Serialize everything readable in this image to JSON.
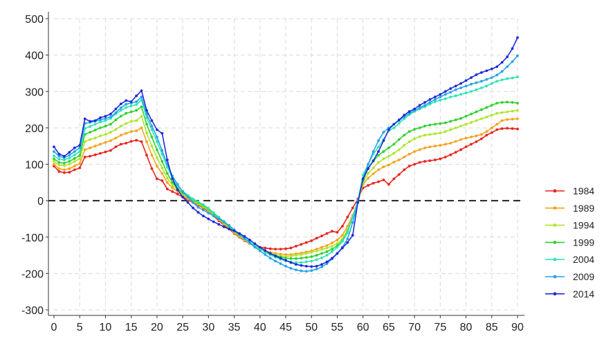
{
  "chart_data": {
    "type": "line",
    "title": "",
    "xlabel": "",
    "ylabel": "",
    "xlim": [
      0,
      90
    ],
    "ylim": [
      -300,
      500
    ],
    "xticks": [
      "0",
      "5",
      "10",
      "15",
      "20",
      "25",
      "30",
      "35",
      "40",
      "45",
      "50",
      "55",
      "60",
      "65",
      "70",
      "75",
      "80",
      "85",
      "90"
    ],
    "yticks": [
      "500",
      "400",
      "300",
      "200",
      "100",
      "0",
      "-100",
      "-200",
      "-300"
    ],
    "grid": true,
    "zero_line": "dashed",
    "legend_placement": "right",
    "x": [
      0,
      1,
      2,
      3,
      4,
      5,
      6,
      7,
      8,
      9,
      10,
      11,
      12,
      13,
      14,
      15,
      16,
      17,
      18,
      19,
      20,
      21,
      22,
      23,
      24,
      25,
      26,
      27,
      28,
      29,
      30,
      31,
      32,
      33,
      34,
      35,
      36,
      37,
      38,
      39,
      40,
      41,
      42,
      43,
      44,
      45,
      46,
      47,
      48,
      49,
      50,
      51,
      52,
      53,
      54,
      55,
      56,
      57,
      58,
      59,
      60,
      61,
      62,
      63,
      64,
      65,
      66,
      67,
      68,
      69,
      70,
      71,
      72,
      73,
      74,
      75,
      76,
      77,
      78,
      79,
      80,
      81,
      82,
      83,
      84,
      85,
      86,
      87,
      88,
      89,
      90
    ],
    "series": [
      {
        "name": "1984",
        "color": "#e8231d",
        "values": [
          95,
          80,
          77,
          78,
          85,
          90,
          120,
          122,
          126,
          130,
          134,
          138,
          148,
          155,
          158,
          163,
          166,
          162,
          125,
          88,
          60,
          55,
          32,
          25,
          18,
          10,
          2,
          -5,
          -12,
          -20,
          -30,
          -42,
          -55,
          -67,
          -78,
          -90,
          -100,
          -110,
          -118,
          -124,
          -128,
          -130,
          -132,
          -133,
          -133,
          -132,
          -130,
          -125,
          -120,
          -115,
          -110,
          -103,
          -97,
          -90,
          -84,
          -87,
          -70,
          -45,
          -20,
          5,
          35,
          42,
          48,
          52,
          57,
          45,
          60,
          72,
          85,
          95,
          100,
          105,
          108,
          110,
          112,
          115,
          120,
          126,
          133,
          140,
          148,
          155,
          162,
          170,
          180,
          187,
          195,
          198,
          199,
          198,
          197
        ]
      },
      {
        "name": "1989",
        "color": "#f5a31c",
        "values": [
          100,
          88,
          85,
          88,
          95,
          102,
          140,
          145,
          150,
          155,
          160,
          165,
          172,
          180,
          185,
          190,
          192,
          200,
          162,
          125,
          95,
          75,
          50,
          35,
          25,
          15,
          5,
          -3,
          -10,
          -18,
          -28,
          -40,
          -52,
          -64,
          -75,
          -88,
          -98,
          -108,
          -118,
          -126,
          -132,
          -138,
          -142,
          -145,
          -147,
          -148,
          -148,
          -146,
          -144,
          -141,
          -138,
          -133,
          -128,
          -123,
          -116,
          -108,
          -95,
          -70,
          -40,
          -5,
          45,
          62,
          74,
          85,
          93,
          98,
          106,
          112,
          120,
          128,
          135,
          140,
          145,
          148,
          150,
          152,
          155,
          158,
          163,
          168,
          172,
          175,
          178,
          182,
          190,
          200,
          210,
          220,
          223,
          224,
          225
        ]
      },
      {
        "name": "1994",
        "color": "#aee52d",
        "values": [
          108,
          98,
          96,
          100,
          108,
          115,
          162,
          168,
          172,
          178,
          182,
          188,
          196,
          205,
          212,
          218,
          220,
          232,
          186,
          150,
          118,
          90,
          62,
          42,
          30,
          18,
          8,
          0,
          -8,
          -16,
          -26,
          -38,
          -50,
          -62,
          -74,
          -86,
          -97,
          -107,
          -117,
          -126,
          -134,
          -140,
          -145,
          -149,
          -152,
          -153,
          -152,
          -150,
          -148,
          -145,
          -142,
          -138,
          -134,
          -130,
          -125,
          -118,
          -105,
          -80,
          -45,
          -5,
          50,
          75,
          90,
          105,
          115,
          122,
          130,
          140,
          152,
          162,
          170,
          176,
          180,
          182,
          184,
          186,
          190,
          195,
          200,
          205,
          210,
          215,
          220,
          225,
          230,
          235,
          240,
          242,
          244,
          246,
          248
        ]
      },
      {
        "name": "1999",
        "color": "#2ed12c",
        "values": [
          115,
          105,
          103,
          108,
          116,
          124,
          182,
          188,
          194,
          200,
          205,
          210,
          222,
          232,
          240,
          244,
          248,
          258,
          210,
          175,
          140,
          108,
          75,
          50,
          33,
          22,
          12,
          3,
          -5,
          -13,
          -23,
          -35,
          -47,
          -59,
          -71,
          -83,
          -94,
          -104,
          -114,
          -123,
          -132,
          -140,
          -146,
          -151,
          -155,
          -158,
          -159,
          -159,
          -158,
          -156,
          -154,
          -150,
          -145,
          -140,
          -133,
          -124,
          -110,
          -85,
          -45,
          0,
          55,
          90,
          108,
          125,
          135,
          145,
          155,
          168,
          180,
          190,
          196,
          200,
          205,
          208,
          210,
          212,
          214,
          218,
          222,
          226,
          232,
          238,
          244,
          250,
          256,
          262,
          268,
          270,
          271,
          270,
          268
        ]
      },
      {
        "name": "2004",
        "color": "#2ee6b5",
        "values": [
          123,
          114,
          112,
          117,
          126,
          135,
          198,
          204,
          210,
          216,
          220,
          226,
          238,
          248,
          256,
          260,
          264,
          276,
          228,
          195,
          162,
          128,
          92,
          62,
          40,
          26,
          15,
          5,
          -3,
          -11,
          -21,
          -33,
          -45,
          -57,
          -69,
          -81,
          -92,
          -103,
          -113,
          -123,
          -132,
          -141,
          -149,
          -155,
          -161,
          -165,
          -168,
          -170,
          -170,
          -168,
          -166,
          -162,
          -157,
          -150,
          -140,
          -128,
          -112,
          -88,
          -45,
          0,
          70,
          100,
          128,
          148,
          168,
          192,
          200,
          212,
          225,
          236,
          245,
          252,
          258,
          265,
          272,
          276,
          280,
          285,
          288,
          292,
          296,
          300,
          305,
          310,
          315,
          322,
          328,
          332,
          335,
          337,
          340
        ]
      },
      {
        "name": "2009",
        "color": "#26a3e8",
        "values": [
          135,
          122,
          118,
          125,
          135,
          145,
          212,
          215,
          218,
          222,
          226,
          230,
          242,
          255,
          265,
          268,
          272,
          285,
          238,
          205,
          175,
          138,
          100,
          68,
          45,
          25,
          10,
          -5,
          -18,
          -26,
          -34,
          -42,
          -50,
          -58,
          -68,
          -80,
          -92,
          -104,
          -116,
          -128,
          -138,
          -148,
          -158,
          -166,
          -173,
          -180,
          -186,
          -190,
          -193,
          -194,
          -192,
          -188,
          -182,
          -173,
          -160,
          -145,
          -128,
          -105,
          -60,
          -5,
          60,
          100,
          135,
          165,
          188,
          200,
          210,
          220,
          230,
          240,
          248,
          255,
          262,
          270,
          278,
          285,
          292,
          298,
          305,
          310,
          315,
          320,
          324,
          328,
          333,
          338,
          345,
          355,
          368,
          382,
          398
        ]
      },
      {
        "name": "2014",
        "color": "#1f2bd8",
        "values": [
          148,
          128,
          122,
          133,
          145,
          152,
          225,
          218,
          220,
          228,
          232,
          238,
          252,
          266,
          275,
          272,
          288,
          302,
          248,
          220,
          195,
          185,
          112,
          60,
          30,
          10,
          -5,
          -20,
          -32,
          -42,
          -50,
          -58,
          -65,
          -72,
          -78,
          -83,
          -90,
          -98,
          -108,
          -118,
          -128,
          -137,
          -145,
          -152,
          -158,
          -164,
          -170,
          -175,
          -178,
          -180,
          -181,
          -180,
          -175,
          -168,
          -158,
          -145,
          -130,
          -115,
          -95,
          -5,
          60,
          88,
          110,
          135,
          165,
          195,
          210,
          222,
          235,
          245,
          252,
          262,
          270,
          278,
          285,
          292,
          300,
          308,
          315,
          322,
          330,
          338,
          346,
          352,
          357,
          362,
          368,
          380,
          395,
          418,
          448
        ]
      }
    ]
  }
}
